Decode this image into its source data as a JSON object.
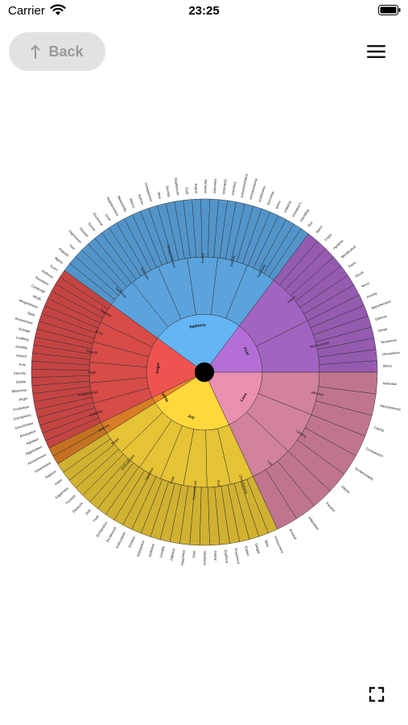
{
  "status": {
    "carrier": "Carrier",
    "time": "23:25"
  },
  "nav": {
    "back_label": "Back",
    "back_icon": "up-arrow-icon",
    "menu_icon": "hamburger-icon"
  },
  "fullscreen_icon": "expand-icon",
  "chart_data": {
    "type": "sunburst",
    "center_color": "#000000",
    "emotions": [
      {
        "core": "Love",
        "color": "#e98fb0",
        "start_deg": 90,
        "end_deg": 155,
        "secondary": [
          "Affection",
          "Longing",
          "Lust"
        ],
        "tertiary": [
          "Adoration",
          "Attractiveness",
          "Caring",
          "Compassion",
          "Sentimentality",
          "Desire",
          "Passion",
          "Infatuation",
          "Arousal"
        ]
      },
      {
        "core": "Joy",
        "color": "#ffd83b",
        "start_deg": 155,
        "end_deg": 238,
        "secondary": [
          "Cheerfulness",
          "Zest",
          "Contentment",
          "Pride",
          "Optimism",
          "Enthrallment",
          "Relief"
        ],
        "tertiary": [
          "Amusement",
          "Bliss",
          "Delight",
          "Elation",
          "Enjoyment",
          "Euphoria",
          "Gaiety",
          "Gladness",
          "Glee",
          "Happiness",
          "Jolliness",
          "Joviality",
          "Jubilation",
          "Satisfaction",
          "Ecstasy",
          "Enthusiasm",
          "Excitement",
          "Exhilaration",
          "Thrill",
          "Zeal",
          "Pleasure",
          "Triumph",
          "Eagerness",
          "Hope",
          "Rapture"
        ]
      },
      {
        "core": "Surprise",
        "color": "#f08a2a",
        "start_deg": 238,
        "end_deg": 244,
        "secondary": [
          "Surprise"
        ],
        "tertiary": [
          "Amazement",
          "Astonishment"
        ]
      },
      {
        "core": "Anger",
        "color": "#ef5350",
        "start_deg": 244,
        "end_deg": 306,
        "secondary": [
          "Irritability",
          "Exasperation",
          "Rage",
          "Disgust",
          "Envy",
          "Torment"
        ],
        "tertiary": [
          "Aggravation",
          "Agitation",
          "Annoyance",
          "Grouchiness",
          "Grumpiness",
          "Frustration",
          "Anger",
          "Bitterness",
          "Dislike",
          "Ferocity",
          "Fury",
          "Hatred",
          "Hostility",
          "Loathing",
          "Outrage",
          "Resentment",
          "Spite",
          "Vengefulness",
          "Wrath",
          "Contempt",
          "Revulsion",
          "Jealousy",
          "Scorn"
        ]
      },
      {
        "core": "Sadness",
        "color": "#64b5f6",
        "start_deg": 306,
        "end_deg": 37,
        "secondary": [
          "Suffering",
          "Sadness",
          "Disappointment",
          "Shame",
          "Neglect",
          "Sympathy"
        ],
        "tertiary": [
          "Agony",
          "Anguish",
          "Hurt",
          "Depression",
          "Despair",
          "Gloom",
          "Glumness",
          "Grief",
          "Hopelessness",
          "Melancholy",
          "Misery",
          "Sorrow",
          "Unhappiness",
          "Woe",
          "Dismay",
          "Displeasure",
          "Guilt",
          "Regret",
          "Remorse",
          "Alienation",
          "Defeatism",
          "Dejection",
          "Embarrassment",
          "Homesickness",
          "Humiliation",
          "Insecurity",
          "Insult",
          "Isolation",
          "Loneliness",
          "Rejection",
          "Pity"
        ]
      },
      {
        "core": "Fear",
        "color": "#b46fd6",
        "start_deg": 37,
        "end_deg": 90,
        "secondary": [
          "Horror",
          "Nervousness"
        ],
        "tertiary": [
          "Alarm",
          "Fright",
          "Hysteria",
          "Mortification",
          "Panic",
          "Shock",
          "Terror",
          "Anxiety",
          "Apprehension",
          "Distress",
          "Dread",
          "Tenseness",
          "Uneasiness",
          "Worry"
        ]
      }
    ]
  }
}
